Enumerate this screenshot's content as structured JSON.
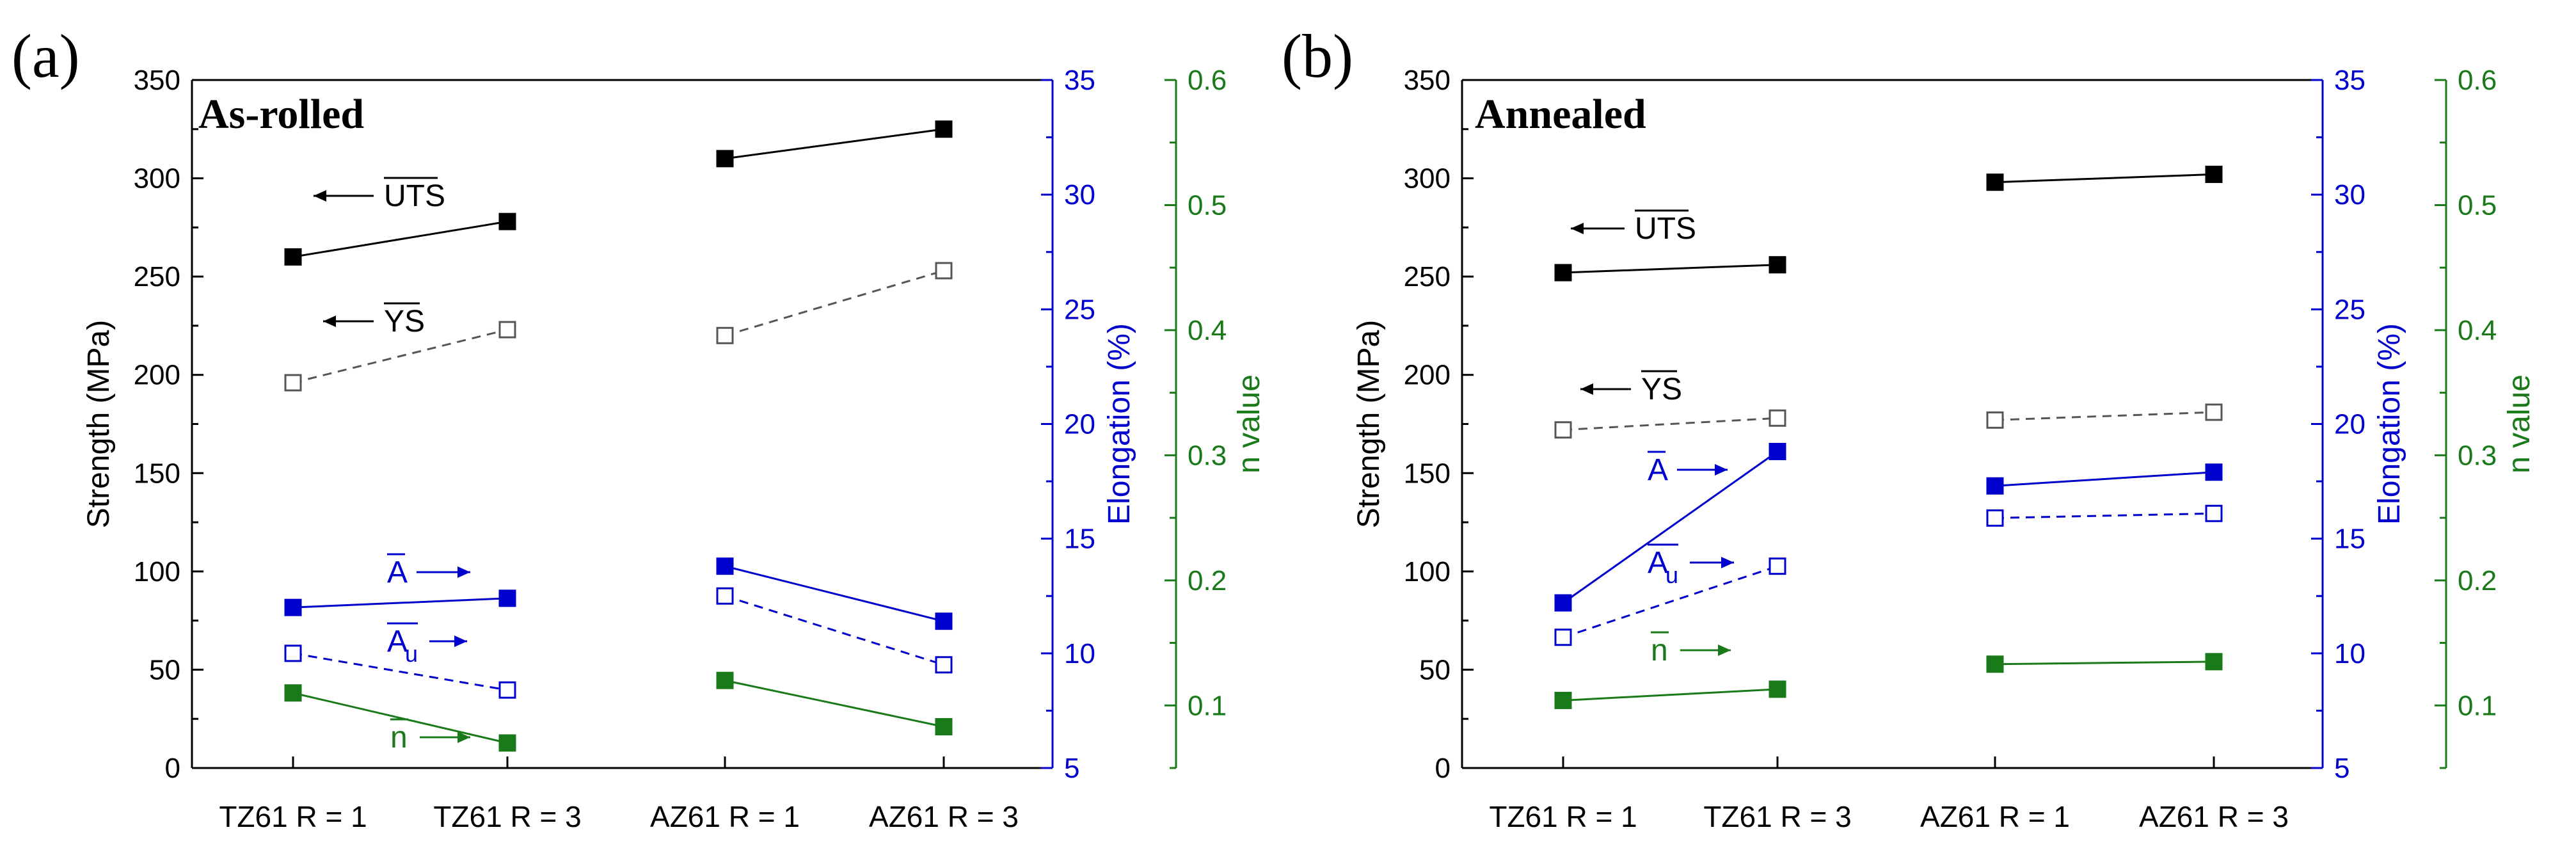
{
  "figure": {
    "colors": {
      "strength": "#000000",
      "elongation": "#0000cc",
      "n_value": "#1a7a1a"
    }
  },
  "chart_data": [
    {
      "type": "line",
      "panel_label": "(a)",
      "title": "As-rolled",
      "categories": [
        "TZ61 R = 1",
        "TZ61 R = 3",
        "AZ61 R = 1",
        "AZ61 R = 3"
      ],
      "axes": {
        "left": {
          "label": "Strength (MPa)",
          "ylim": [
            0,
            350
          ],
          "ticks": [
            "0",
            "50",
            "100",
            "150",
            "200",
            "250",
            "300",
            "350"
          ]
        },
        "right1": {
          "label": "Elongation (%)",
          "ylim": [
            5,
            35
          ],
          "ticks": [
            "5",
            "10",
            "15",
            "20",
            "25",
            "30",
            "35"
          ]
        },
        "right2": {
          "label": "n value",
          "ylim": [
            0.05,
            0.6
          ],
          "ticks": [
            "0.1",
            "0.2",
            "0.3",
            "0.4",
            "0.5",
            "0.6"
          ]
        }
      },
      "series": [
        {
          "name": "UTS",
          "axis": "left",
          "values": [
            260,
            278,
            310,
            325
          ],
          "marker": "filled-square",
          "style": "solid",
          "color": "#000000"
        },
        {
          "name": "YS",
          "axis": "left",
          "values": [
            196,
            223,
            220,
            253
          ],
          "marker": "open-square",
          "style": "dashed",
          "color": "#555555"
        },
        {
          "name": "A",
          "axis": "right1",
          "values": [
            12.0,
            12.4,
            13.8,
            11.4
          ],
          "marker": "filled-square",
          "style": "solid",
          "color": "#0000cc"
        },
        {
          "name": "Au",
          "axis": "right1",
          "values": [
            10.0,
            8.4,
            12.5,
            9.5
          ],
          "marker": "open-square",
          "style": "dashed",
          "color": "#0000cc"
        },
        {
          "name": "n",
          "axis": "right2",
          "values": [
            0.11,
            0.07,
            0.12,
            0.083
          ],
          "marker": "filled-square",
          "style": "solid",
          "color": "#1a7a1a"
        }
      ],
      "annotations": [
        {
          "text": "UTS",
          "series": "UTS"
        },
        {
          "text": "YS",
          "series": "YS"
        },
        {
          "text": "A",
          "series": "A"
        },
        {
          "text": "A",
          "subscript": "u",
          "series": "Au"
        },
        {
          "text": "n",
          "series": "n"
        }
      ]
    },
    {
      "type": "line",
      "panel_label": "(b)",
      "title": "Annealed",
      "categories": [
        "TZ61 R = 1",
        "TZ61 R = 3",
        "AZ61 R = 1",
        "AZ61 R = 3"
      ],
      "axes": {
        "left": {
          "label": "Strength (MPa)",
          "ylim": [
            0,
            350
          ],
          "ticks": [
            "0",
            "50",
            "100",
            "150",
            "200",
            "250",
            "300",
            "350"
          ]
        },
        "right1": {
          "label": "Elongation (%)",
          "ylim": [
            5,
            35
          ],
          "ticks": [
            "5",
            "10",
            "15",
            "20",
            "25",
            "30",
            "35"
          ]
        },
        "right2": {
          "label": "n value",
          "ylim": [
            0.05,
            0.6
          ],
          "ticks": [
            "0.1",
            "0.2",
            "0.3",
            "0.4",
            "0.5",
            "0.6"
          ]
        }
      },
      "series": [
        {
          "name": "UTS",
          "axis": "left",
          "values": [
            252,
            256,
            298,
            302
          ],
          "marker": "filled-square",
          "style": "solid",
          "color": "#000000"
        },
        {
          "name": "YS",
          "axis": "left",
          "values": [
            172,
            178,
            177,
            181
          ],
          "marker": "open-square",
          "style": "dashed",
          "color": "#555555"
        },
        {
          "name": "A",
          "axis": "right1",
          "values": [
            12.2,
            18.8,
            17.3,
            17.9
          ],
          "marker": "filled-square",
          "style": "solid",
          "color": "#0000cc"
        },
        {
          "name": "Au",
          "axis": "right1",
          "values": [
            10.7,
            13.8,
            15.9,
            16.1
          ],
          "marker": "open-square",
          "style": "dashed",
          "color": "#0000cc"
        },
        {
          "name": "n",
          "axis": "right2",
          "values": [
            0.104,
            0.113,
            0.133,
            0.135
          ],
          "marker": "filled-square",
          "style": "solid",
          "color": "#1a7a1a"
        }
      ],
      "annotations": [
        {
          "text": "UTS",
          "series": "UTS"
        },
        {
          "text": "YS",
          "series": "YS"
        },
        {
          "text": "A",
          "series": "A"
        },
        {
          "text": "A",
          "subscript": "u",
          "series": "Au"
        },
        {
          "text": "n",
          "series": "n"
        }
      ]
    }
  ]
}
